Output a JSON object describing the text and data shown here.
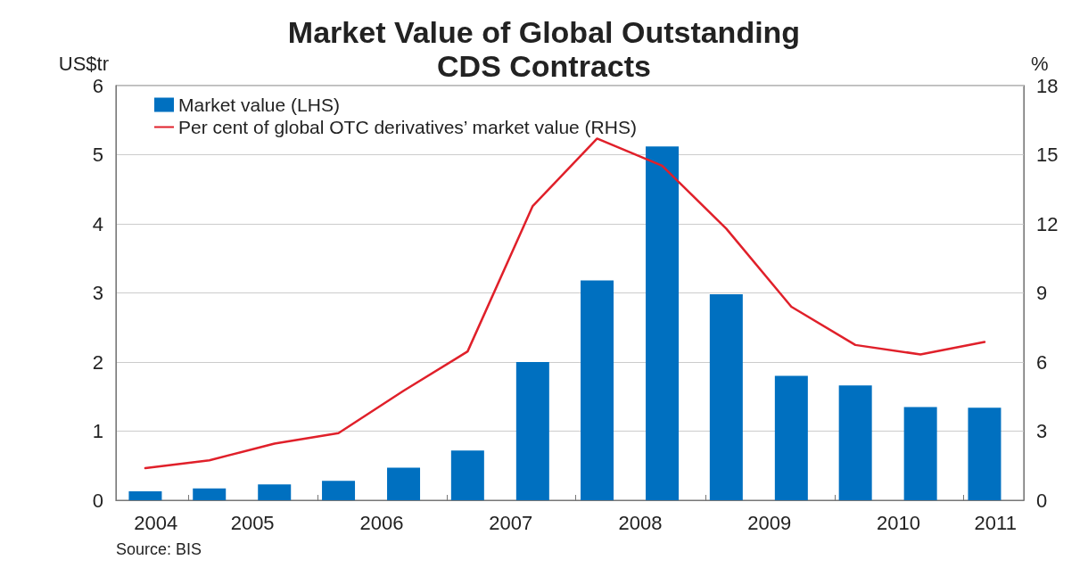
{
  "chart_data": {
    "type": "bar",
    "title": "Market Value of Global Outstanding\nCDS Contracts",
    "ylabel": "US$tr",
    "y2label": "%",
    "x": [
      "2004-09",
      "2005-03",
      "2005-09",
      "2006-03",
      "2006-09",
      "2007-03",
      "2007-09",
      "2008-03",
      "2008-09",
      "2009-03",
      "2009-09",
      "2010-03",
      "2010-09",
      "2011-03"
    ],
    "xlim": [
      "2004-06-10",
      "2011-06-20"
    ],
    "xticks": [
      {
        "value": "2004-10",
        "label": "2004"
      },
      {
        "value": "2005",
        "label": null
      },
      {
        "value": "2005-07",
        "label": "2005"
      },
      {
        "value": "2006",
        "label": null
      },
      {
        "value": "2006-07",
        "label": "2006"
      },
      {
        "value": "2007",
        "label": null
      },
      {
        "value": "2007-07",
        "label": "2007"
      },
      {
        "value": "2008",
        "label": null
      },
      {
        "value": "2008-07",
        "label": "2008"
      },
      {
        "value": "2009",
        "label": null
      },
      {
        "value": "2009-07",
        "label": "2009"
      },
      {
        "value": "2010",
        "label": null
      },
      {
        "value": "2010-07",
        "label": "2010"
      },
      {
        "value": "2011",
        "label": null
      },
      {
        "value": "2011-04",
        "label": "2011"
      }
    ],
    "series": [
      {
        "name": "Market value (LHS)",
        "color": "#0070c0",
        "values": [
          0.13,
          0.17,
          0.23,
          0.28,
          0.47,
          0.72,
          2.0,
          3.18,
          5.12,
          2.98,
          1.8,
          1.66,
          1.35,
          1.34
        ]
      },
      {
        "name": "Per cent of global OTC derivatives’ market value (RHS)",
        "type": "line",
        "axis": "y2",
        "color": "#e0202a",
        "values": [
          1.39,
          1.73,
          2.46,
          2.91,
          4.75,
          6.46,
          12.77,
          15.7,
          14.52,
          11.79,
          8.4,
          6.74,
          6.33,
          6.87
        ]
      }
    ],
    "ylim": [
      0,
      6
    ],
    "yticks": [
      0,
      1,
      2,
      3,
      4,
      5,
      6
    ],
    "y2lim": [
      0,
      18
    ],
    "y2ticks": [
      0,
      3,
      6,
      9,
      12,
      15,
      18
    ],
    "grid": "y",
    "legend": "top left",
    "marker": "none",
    "line_style": "solid",
    "annotations": [
      "Source: BIS"
    ]
  }
}
